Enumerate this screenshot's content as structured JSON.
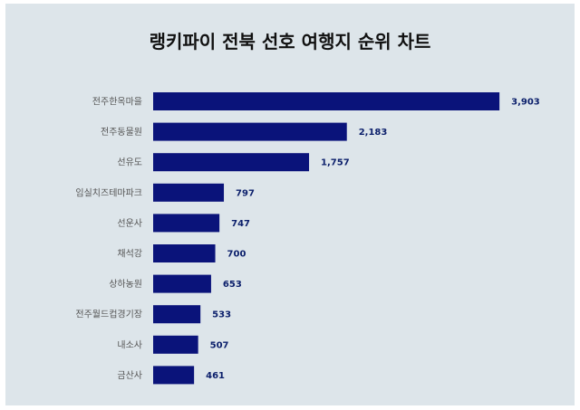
{
  "chart_data": {
    "type": "bar",
    "orientation": "horizontal",
    "title": "랭키파이 전북 선호 여행지 순위 차트",
    "categories": [
      "전주한옥마을",
      "전주동물원",
      "선유도",
      "임실치즈테마파크",
      "선운사",
      "채석강",
      "상하농원",
      "전주월드컵경기장",
      "내소사",
      "금산사"
    ],
    "values": [
      3903,
      2183,
      1757,
      797,
      747,
      700,
      653,
      533,
      507,
      461
    ],
    "value_labels": [
      "3,903",
      "2,183",
      "1,757",
      "797",
      "747",
      "700",
      "653",
      "533",
      "507",
      "461"
    ],
    "xlim": [
      0,
      4300
    ],
    "bar_color": "#0a137a",
    "background_color": "#dde5ea",
    "grid": false,
    "legend": "none"
  }
}
